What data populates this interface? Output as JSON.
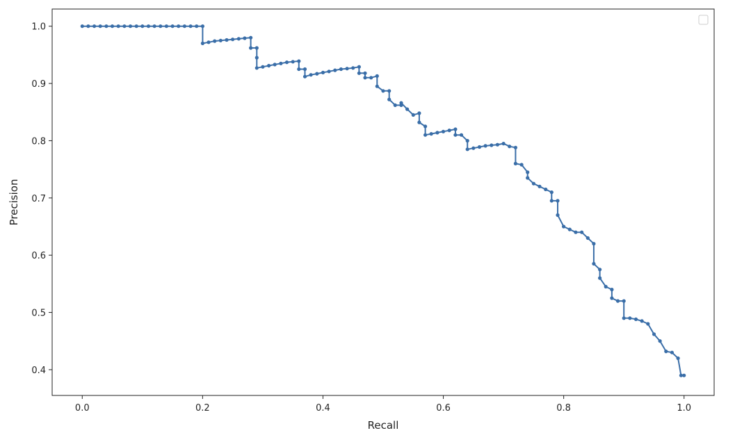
{
  "chart_data": {
    "type": "line",
    "title": "",
    "xlabel": "Recall",
    "ylabel": "Precision",
    "xlim": [
      -0.05,
      1.05
    ],
    "ylim": [
      0.355,
      1.03
    ],
    "grid": false,
    "legend": "top-right (empty legend box, no entries)",
    "line_color": "#3a6ea8",
    "marker": "circle",
    "x_ticks": [
      0.0,
      0.2,
      0.4,
      0.6,
      0.8,
      1.0
    ],
    "x_tick_labels": [
      "0.0",
      "0.2",
      "0.4",
      "0.6",
      "0.8",
      "1.0"
    ],
    "y_ticks": [
      0.4,
      0.5,
      0.6,
      0.7,
      0.8,
      0.9,
      1.0
    ],
    "y_tick_labels": [
      "0.4",
      "0.5",
      "0.6",
      "0.7",
      "0.8",
      "0.9",
      "1.0"
    ],
    "series": [
      {
        "x": [
          0.0,
          0.01,
          0.02,
          0.03,
          0.04,
          0.05,
          0.06,
          0.07,
          0.08,
          0.09,
          0.1,
          0.11,
          0.12,
          0.13,
          0.14,
          0.15,
          0.16,
          0.17,
          0.18,
          0.19,
          0.2,
          0.2,
          0.21,
          0.22,
          0.23,
          0.24,
          0.25,
          0.26,
          0.27,
          0.28,
          0.28,
          0.29,
          0.29,
          0.29,
          0.3,
          0.31,
          0.32,
          0.33,
          0.34,
          0.35,
          0.36,
          0.36,
          0.37,
          0.37,
          0.38,
          0.39,
          0.4,
          0.41,
          0.42,
          0.43,
          0.44,
          0.45,
          0.46,
          0.46,
          0.47,
          0.47,
          0.48,
          0.49,
          0.49,
          0.5,
          0.51,
          0.51,
          0.52,
          0.53,
          0.53,
          0.54,
          0.55,
          0.56,
          0.56,
          0.57,
          0.57,
          0.58,
          0.59,
          0.6,
          0.61,
          0.62,
          0.62,
          0.63,
          0.64,
          0.64,
          0.65,
          0.66,
          0.67,
          0.68,
          0.69,
          0.7,
          0.71,
          0.72,
          0.72,
          0.73,
          0.74,
          0.74,
          0.75,
          0.76,
          0.77,
          0.78,
          0.78,
          0.79,
          0.79,
          0.8,
          0.81,
          0.82,
          0.83,
          0.84,
          0.85,
          0.85,
          0.86,
          0.86,
          0.87,
          0.88,
          0.88,
          0.89,
          0.9,
          0.9,
          0.91,
          0.92,
          0.93,
          0.94,
          0.95,
          0.96,
          0.97,
          0.98,
          0.99,
          0.995,
          1.0
        ],
        "y": [
          1.0,
          1.0,
          1.0,
          1.0,
          1.0,
          1.0,
          1.0,
          1.0,
          1.0,
          1.0,
          1.0,
          1.0,
          1.0,
          1.0,
          1.0,
          1.0,
          1.0,
          1.0,
          1.0,
          1.0,
          1.0,
          0.97,
          0.972,
          0.974,
          0.975,
          0.976,
          0.977,
          0.978,
          0.979,
          0.98,
          0.962,
          0.962,
          0.945,
          0.927,
          0.929,
          0.931,
          0.933,
          0.935,
          0.937,
          0.938,
          0.939,
          0.925,
          0.925,
          0.912,
          0.915,
          0.917,
          0.919,
          0.921,
          0.923,
          0.925,
          0.926,
          0.927,
          0.929,
          0.918,
          0.918,
          0.91,
          0.91,
          0.913,
          0.895,
          0.887,
          0.887,
          0.872,
          0.862,
          0.862,
          0.866,
          0.855,
          0.845,
          0.848,
          0.832,
          0.825,
          0.81,
          0.812,
          0.814,
          0.816,
          0.818,
          0.82,
          0.81,
          0.81,
          0.8,
          0.785,
          0.787,
          0.789,
          0.791,
          0.792,
          0.793,
          0.795,
          0.79,
          0.788,
          0.76,
          0.758,
          0.745,
          0.735,
          0.725,
          0.72,
          0.715,
          0.71,
          0.695,
          0.695,
          0.67,
          0.65,
          0.645,
          0.64,
          0.64,
          0.63,
          0.62,
          0.585,
          0.575,
          0.56,
          0.545,
          0.54,
          0.525,
          0.52,
          0.52,
          0.49,
          0.49,
          0.488,
          0.485,
          0.48,
          0.462,
          0.45,
          0.432,
          0.43,
          0.42,
          0.39,
          0.39
        ]
      }
    ]
  }
}
